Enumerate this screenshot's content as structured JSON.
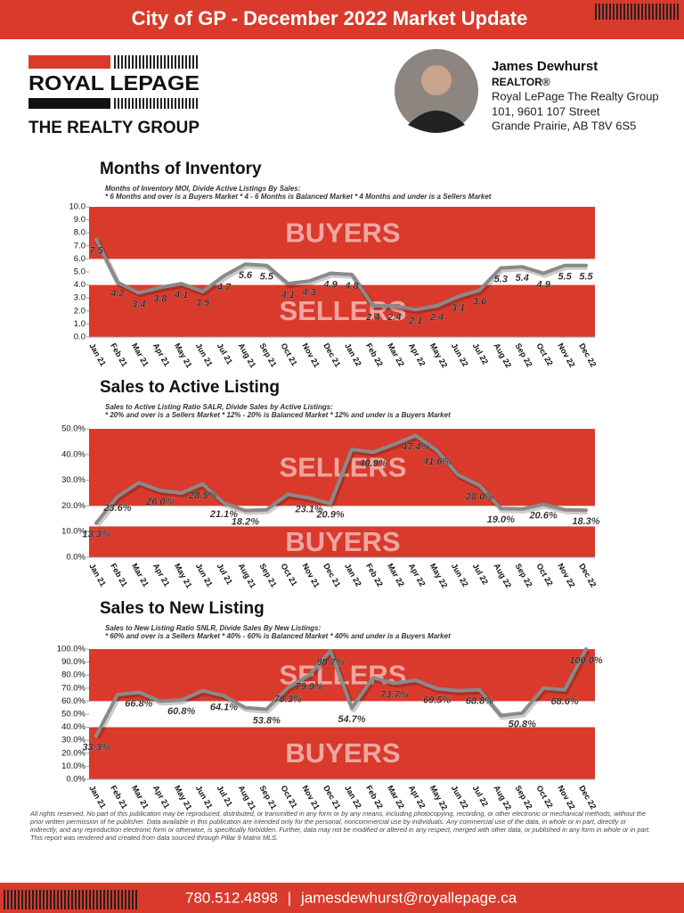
{
  "header": {
    "title": "City of GP - December 2022 Market Update"
  },
  "logo": {
    "brand": "ROYAL LEPAGE",
    "office": "THE REALTY GROUP"
  },
  "agent": {
    "name": "James Dewhurst",
    "role": "REALTOR®",
    "company": "Royal LePage The Realty Group",
    "address1": "101, 9601 107 Street",
    "address2": "Grande Prairie, AB T8V 6S5"
  },
  "chart_data": [
    {
      "type": "line",
      "title": "Months of Inventory",
      "subtitle": [
        "Months of Inventory MOI, Divide Active Listings By Sales:",
        "* 6 Months and over is a Buyers Market * 4 - 6 Months is Balanced Market * 4 Months and under is a Sellers Market"
      ],
      "categories": [
        "Jan 21",
        "Feb 21",
        "Mar 21",
        "Apr 21",
        "May 21",
        "Jun 21",
        "Jul 21",
        "Aug 21",
        "Sep 21",
        "Oct 21",
        "Nov 21",
        "Dec 21",
        "Jan 22",
        "Feb 22",
        "Mar 22",
        "Apr 22",
        "May 22",
        "Jun 22",
        "Jul 22",
        "Aug 22",
        "Sep 22",
        "Oct 22",
        "Nov 22",
        "Dec 22"
      ],
      "values": [
        7.5,
        4.2,
        3.4,
        3.8,
        4.1,
        3.5,
        4.7,
        5.6,
        5.5,
        4.1,
        4.3,
        4.9,
        4.8,
        2.4,
        2.4,
        2.1,
        2.4,
        3.1,
        3.6,
        5.3,
        5.4,
        4.9,
        5.5,
        5.5
      ],
      "color": "#8a8a8a",
      "ylim": [
        0,
        10
      ],
      "yticks": [
        {
          "value": 0,
          "label": "0.0"
        },
        {
          "value": 1,
          "label": "1.0"
        },
        {
          "value": 2,
          "label": "2.0"
        },
        {
          "value": 3,
          "label": "3.0"
        },
        {
          "value": 4,
          "label": "4.0"
        },
        {
          "value": 5,
          "label": "5.0"
        },
        {
          "value": 6,
          "label": "6.0"
        },
        {
          "value": 7,
          "label": "7.0"
        },
        {
          "value": 8,
          "label": "8.0"
        },
        {
          "value": 9,
          "label": "9.0"
        },
        {
          "value": 10,
          "label": "10.0"
        }
      ],
      "band_color": "#d93a2c",
      "bands": [
        {
          "from": 6,
          "to": 10,
          "label": "BUYERS"
        },
        {
          "from": 0,
          "to": 4,
          "label": "SELLERS"
        }
      ]
    },
    {
      "type": "line",
      "title": "Sales to Active Listing",
      "subtitle": [
        "Sales to Active Listing Ratio SALR, Divide Sales by Active Listings:",
        "* 20% and over is a Sellers Market * 12% - 20% is Balanced Market  * 12% and under is a Buyers Market"
      ],
      "categories": [
        "Jan 21",
        "Feb 21",
        "Mar 21",
        "Apr 21",
        "May 21",
        "Jun 21",
        "Jul 21",
        "Aug 21",
        "Sep 21",
        "Oct 21",
        "Nov 21",
        "Dec 21",
        "Jan 22",
        "Feb 22",
        "Mar 22",
        "Apr 22",
        "May 22",
        "Jun 22",
        "Jul 22",
        "Aug 22",
        "Sep 22",
        "Oct 22",
        "Nov 22",
        "Dec 22"
      ],
      "values": [
        13.3,
        23.6,
        29,
        26.0,
        25,
        28.5,
        21.1,
        18.2,
        18.5,
        24.5,
        23.1,
        20.9,
        42,
        40.9,
        44,
        47.4,
        41.6,
        32,
        28.0,
        19.0,
        18.8,
        20.6,
        18.5,
        18.3
      ],
      "value_labels": [
        "13.3%",
        "23.6%",
        null,
        "26.0%",
        null,
        "28.5%",
        "21.1%",
        "18.2%",
        null,
        null,
        "23.1%",
        "20.9%",
        null,
        "40.9%",
        null,
        "47.4%",
        "41.6%",
        null,
        "28.0%",
        "19.0%",
        null,
        "20.6%",
        null,
        "18.3%"
      ],
      "color": "#8a8a8a",
      "ylim": [
        0,
        50
      ],
      "yticks": [
        {
          "value": 0,
          "label": "0.0%"
        },
        {
          "value": 10,
          "label": "10.0%"
        },
        {
          "value": 20,
          "label": "20.0%"
        },
        {
          "value": 30,
          "label": "30.0%"
        },
        {
          "value": 40,
          "label": "40.0%"
        },
        {
          "value": 50,
          "label": "50.0%"
        }
      ],
      "band_color": "#d93a2c",
      "bands": [
        {
          "from": 20,
          "to": 50,
          "label": "SELLERS"
        },
        {
          "from": 0,
          "to": 12,
          "label": "BUYERS"
        }
      ]
    },
    {
      "type": "line",
      "title": "Sales to New Listing",
      "subtitle": [
        "Sales to New Listing Ratio SNLR, Divide Sales By New Listings:",
        "* 60% and over is a Sellers Market * 40% - 60% is Balanced Market * 40% and under is a Buyers Market"
      ],
      "categories": [
        "Jan 21",
        "Feb 21",
        "Mar 21",
        "Apr 21",
        "May 21",
        "Jun 21",
        "Jul 21",
        "Aug 21",
        "Sep 21",
        "Oct 21",
        "Nov 21",
        "Dec 21",
        "Jan 22",
        "Feb 22",
        "Mar 22",
        "Apr 22",
        "May 22",
        "Jun 22",
        "Jul 22",
        "Aug 22",
        "Sep 22",
        "Oct 22",
        "Nov 22",
        "Dec 22"
      ],
      "values": [
        33.3,
        65,
        66.8,
        60,
        60.8,
        68,
        64.1,
        55,
        53.8,
        70.3,
        79.9,
        98.7,
        54.7,
        78,
        73.7,
        76,
        69.5,
        68,
        68.8,
        49,
        50.8,
        70,
        68.6,
        100.0
      ],
      "value_labels": [
        "33.3%",
        null,
        "66.8%",
        null,
        "60.8%",
        null,
        "64.1%",
        null,
        "53.8%",
        "70.3%",
        "79.9%",
        "98.7%",
        "54.7%",
        null,
        "73.7%",
        null,
        "69.5%",
        null,
        "68.8%",
        null,
        "50.8%",
        null,
        "68.6%",
        "100.0%"
      ],
      "color": "#8a8a8a",
      "ylim": [
        0,
        100
      ],
      "yticks": [
        {
          "value": 0,
          "label": "0.0%"
        },
        {
          "value": 10,
          "label": "10.0%"
        },
        {
          "value": 20,
          "label": "20.0%"
        },
        {
          "value": 30,
          "label": "30.0%"
        },
        {
          "value": 40,
          "label": "40.0%"
        },
        {
          "value": 50,
          "label": "50.0%"
        },
        {
          "value": 60,
          "label": "60.0%"
        },
        {
          "value": 70,
          "label": "70.0%"
        },
        {
          "value": 80,
          "label": "80.0%"
        },
        {
          "value": 90,
          "label": "90.0%"
        },
        {
          "value": 100,
          "label": "100.0%"
        }
      ],
      "band_color": "#d93a2c",
      "bands": [
        {
          "from": 60,
          "to": 100,
          "label": "SELLERS"
        },
        {
          "from": 0,
          "to": 40,
          "label": "BUYERS"
        }
      ]
    }
  ],
  "disclaimer": "All rights reserved. No part of this publication may be reproduced, distributed, or transmitted in any form or by any means, including photocopying, recording, or other electronic or mechanical methods, without the prior written permission of he publisher. Data available in this publication are intended only for the personal, noncommercial use by individuals. Any commercial use of the data, in whole or in part, directly or indirectly, and any reproduction electronic form or otherwise, is specifically forbidden. Further, data may not be modified or altered in any respect, merged with other data, or published in any form in whole or in part. This report was rendered and created from data sourced through Pillar 9 Matrix MLS.",
  "footer": {
    "phone": "780.512.4898",
    "email": "jamesdewhurst@royallepage.ca"
  }
}
